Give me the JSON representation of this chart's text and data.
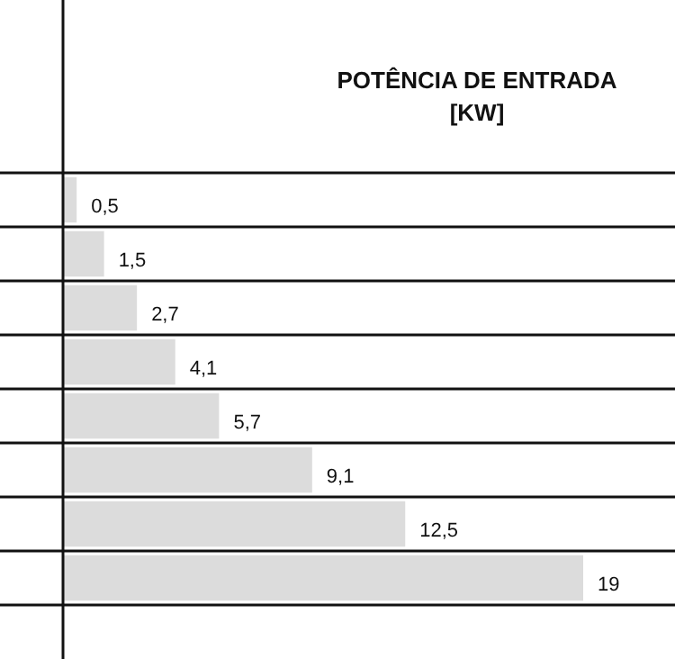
{
  "chart_data": {
    "type": "bar",
    "orientation": "horizontal",
    "title": "POTÊNCIA DE ENTRADA",
    "subtitle": "[KW]",
    "categories": [
      null,
      null,
      null,
      null,
      null,
      null,
      null,
      null
    ],
    "values": [
      0.5,
      1.5,
      2.7,
      4.1,
      5.7,
      9.1,
      12.5,
      19
    ],
    "value_labels": [
      "0,5",
      "1,5",
      "2,7",
      "4,1",
      "5,7",
      "9,1",
      "12,5",
      "19"
    ],
    "color": "#dcdcdc"
  }
}
